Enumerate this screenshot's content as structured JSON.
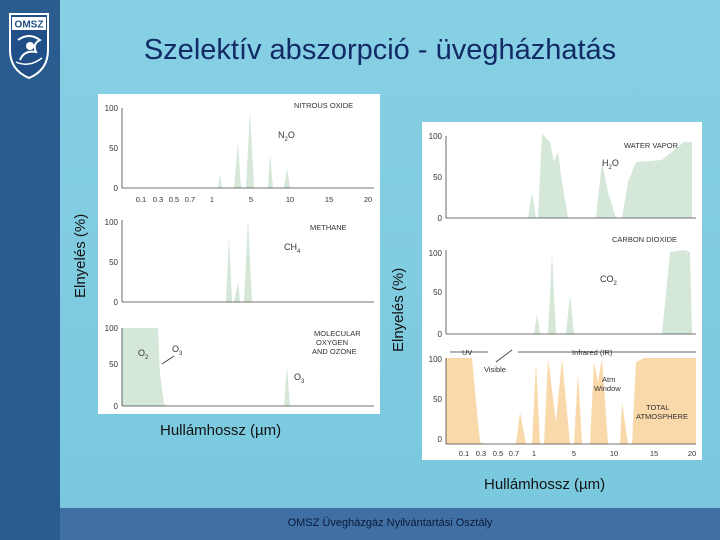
{
  "logo": {
    "text": "OMSZ",
    "icon": "omsz-shield-icon"
  },
  "slide": {
    "title": "Szelektív abszorpció - üvegházhatás",
    "footer": "OMSZ Üvegházgáz Nyilvántartási Osztály"
  },
  "left_figure": {
    "ylabel": "Elnyelés (%)",
    "xlabel": "Hullámhossz (µm)",
    "y_ticks": [
      "100",
      "50",
      "0"
    ],
    "x_ticks": [
      "0.1",
      "0.3",
      "0.5",
      "0.7",
      "1",
      "5",
      "10",
      "15",
      "20"
    ],
    "panels": [
      {
        "label": "NITROUS OXIDE",
        "formula": "N",
        "sub": "2",
        "formula_tail": "O"
      },
      {
        "label": "METHANE",
        "formula": "CH",
        "sub": "4",
        "formula_tail": ""
      },
      {
        "label_lines": [
          "MOLECULAR",
          "OXYGEN",
          "AND OZONE"
        ],
        "o2": "O",
        "o2_sub": "2",
        "o3": "O",
        "o3_sub": "3"
      }
    ]
  },
  "right_figure": {
    "ylabel": "Elnyelés (%)",
    "xlabel": "Hullámhossz (µm)",
    "y_ticks": [
      "100",
      "50",
      "0"
    ],
    "x_ticks": [
      "0.1",
      "0.3",
      "0.5",
      "0.7",
      "1",
      "5",
      "10",
      "15",
      "20"
    ],
    "panels": [
      {
        "label": "WATER VAPOR",
        "formula": "H",
        "sub": "2",
        "formula_tail": "O"
      },
      {
        "label": "CARBON DIOXIDE",
        "formula": "CO",
        "sub": "2",
        "formula_tail": ""
      },
      {
        "label_lines": [
          "TOTAL",
          "ATMOSPHERE"
        ],
        "uv": "UV",
        "visible": "Visible",
        "infrared": "Infrared (IR)",
        "atm_lines": [
          "Atm",
          "Window"
        ]
      }
    ]
  },
  "colors": {
    "absorption_fill": "#d4e7d8",
    "total_fill": "#f9d9aa",
    "panel_bg": "#ffffff"
  }
}
